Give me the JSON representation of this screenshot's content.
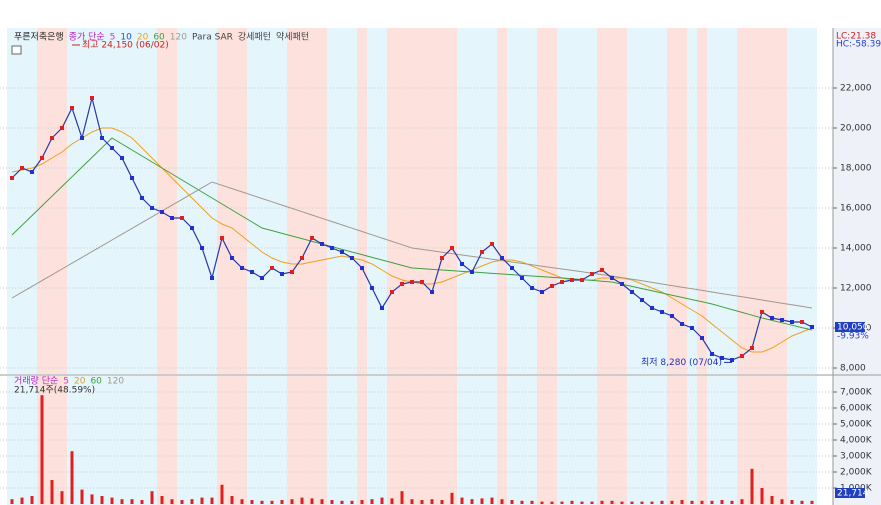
{
  "header": {
    "price_label": "종가 단순",
    "sar_label": "Para SAR",
    "sar_strong": "강세패턴",
    "sar_weak": "약세패턴",
    "volume_label": "거래량 단순",
    "volume_info": "21,714주(48.59%)",
    "lc": "LC:21.38",
    "hc": "HC:-58.39",
    "change": "-9.93%",
    "volume_last": "21,714"
  },
  "chart_data": [
    {
      "type": "line",
      "title": "푸른저축은행",
      "ylim": [
        7800,
        24900
      ],
      "yticks": [
        {
          "value": 8000,
          "label": "8,000"
        },
        {
          "value": 10000,
          "label": "10,000"
        },
        {
          "value": 12000,
          "label": "12,000"
        },
        {
          "value": 14000,
          "label": "14,000"
        },
        {
          "value": 16000,
          "label": "16,000"
        },
        {
          "value": 18000,
          "label": "18,000"
        },
        {
          "value": 20000,
          "label": "20,000"
        },
        {
          "value": 22000,
          "label": "22,000"
        }
      ],
      "grid": true,
      "last_price": {
        "value": 10050,
        "label": "10,050"
      },
      "other_periods": [
        {
          "label": "5",
          "color": "#e030d0"
        },
        {
          "label": "10",
          "color": "#2050e0"
        }
      ],
      "price": {
        "color": "#2838a8",
        "values": [
          17500,
          18000,
          17800,
          18500,
          19500,
          20000,
          21000,
          19500,
          21500,
          19500,
          19000,
          18500,
          17500,
          16500,
          16000,
          15800,
          15500,
          15500,
          15000,
          14000,
          12500,
          14500,
          13500,
          13000,
          12800,
          12500,
          13000,
          12700,
          12800,
          13500,
          14500,
          14200,
          14000,
          13800,
          13500,
          13000,
          12000,
          11000,
          11800,
          12200,
          12300,
          12300,
          11800,
          13500,
          14000,
          13200,
          12800,
          13800,
          14200,
          13500,
          13000,
          12500,
          12000,
          11800,
          12100,
          12300,
          12400,
          12400,
          12700,
          12900,
          12500,
          12200,
          11800,
          11400,
          11000,
          10800,
          10600,
          10200,
          10000,
          9500,
          8700,
          8500,
          8400,
          8600,
          9000,
          10800,
          10500,
          10400,
          10300,
          10300,
          10050
        ]
      },
      "series": [
        {
          "name": "20",
          "color": "#f0a020",
          "values": [
            17800,
            17900,
            18000,
            18200,
            18500,
            18800,
            19200,
            19500,
            19800,
            20000,
            20000,
            19800,
            19500,
            19000,
            18500,
            18000,
            17500,
            17000,
            16500,
            16000,
            15500,
            15200,
            15000,
            14600,
            14200,
            13800,
            13500,
            13300,
            13200,
            13200,
            13300,
            13400,
            13500,
            13600,
            13500,
            13400,
            13200,
            12900,
            12600,
            12400,
            12300,
            12200,
            12200,
            12300,
            12500,
            12700,
            12900,
            13100,
            13300,
            13400,
            13400,
            13300,
            13100,
            12900,
            12700,
            12500,
            12400,
            12400,
            12400,
            12500,
            12500,
            12500,
            12400,
            12200,
            12000,
            11800,
            11500,
            11200,
            10900,
            10600,
            10200,
            9800,
            9400,
            9000,
            8800,
            8800,
            9000,
            9300,
            9600,
            9800,
            10000
          ]
        },
        {
          "name": "60",
          "color": "#40a040",
          "values": [
            14650,
            15135,
            15620,
            16105,
            16590,
            17075,
            17560,
            18045,
            18530,
            19015,
            19500,
            19200,
            18900,
            18600,
            18300,
            18000,
            17700,
            17400,
            17100,
            16800,
            16500,
            16200,
            15900,
            15600,
            15300,
            15000,
            14867,
            14733,
            14600,
            14467,
            14333,
            14200,
            14067,
            13933,
            13800,
            13667,
            13533,
            13400,
            13267,
            13133,
            13000,
            12967,
            12933,
            12900,
            12867,
            12833,
            12800,
            12767,
            12733,
            12700,
            12667,
            12633,
            12600,
            12567,
            12533,
            12500,
            12460,
            12420,
            12380,
            12340,
            12300,
            12190,
            12080,
            11970,
            11860,
            11750,
            11640,
            11530,
            11420,
            11310,
            11200,
            11060,
            10920,
            10780,
            10640,
            10500,
            10380,
            10260,
            10140,
            10020,
            9900
          ]
        },
        {
          "name": "120",
          "color": "#a09890",
          "values": [
            11500,
            11790,
            12080,
            12370,
            12660,
            12950,
            13240,
            13530,
            13820,
            14110,
            14400,
            14690,
            14980,
            15270,
            15560,
            15850,
            16140,
            16430,
            16720,
            17010,
            17300,
            17135,
            16970,
            16805,
            16640,
            16475,
            16310,
            16145,
            15980,
            15815,
            15650,
            15485,
            15320,
            15155,
            14990,
            14825,
            14660,
            14495,
            14330,
            14165,
            14000,
            13930,
            13860,
            13790,
            13720,
            13650,
            13580,
            13510,
            13440,
            13370,
            13300,
            13230,
            13160,
            13090,
            13020,
            12950,
            12880,
            12810,
            12740,
            12670,
            12600,
            12520,
            12440,
            12360,
            12280,
            12200,
            12120,
            12040,
            11960,
            11880,
            11800,
            11720,
            11640,
            11560,
            11480,
            11400,
            11320,
            11240,
            11160,
            11080,
            11000
          ]
        }
      ],
      "band_colors": [
        "#e4f5fc",
        "#e4f5fc",
        "#e4f5fc",
        "#fde1dc",
        "#fde1dc",
        "#fde1dc",
        "#e4f5fc",
        "#e4f5fc",
        "#e4f5fc",
        "#e4f5fc",
        "#e4f5fc",
        "#e4f5fc",
        "#e4f5fc",
        "#e4f5fc",
        "#e4f5fc",
        "#fde1dc",
        "#fde1dc",
        "#e4f5fc",
        "#e4f5fc",
        "#e4f5fc",
        "#e4f5fc",
        "#fde1dc",
        "#fde1dc",
        "#fde1dc",
        "#e4f5fc",
        "#e4f5fc",
        "#e4f5fc",
        "#e4f5fc",
        "#fde1dc",
        "#fde1dc",
        "#fde1dc",
        "#fde1dc",
        "#e4f5fc",
        "#e4f5fc",
        "#e4f5fc",
        "#fde1dc",
        "#e4f5fc",
        "#e4f5fc",
        "#fde1dc",
        "#fde1dc",
        "#fde1dc",
        "#fde1dc",
        "#fde1dc",
        "#fde1dc",
        "#fde1dc",
        "#e4f5fc",
        "#e4f5fc",
        "#e4f5fc",
        "#e4f5fc",
        "#fde1dc",
        "#e4f5fc",
        "#e4f5fc",
        "#e4f5fc",
        "#fde1dc",
        "#fde1dc",
        "#e4f5fc",
        "#e4f5fc",
        "#e4f5fc",
        "#e4f5fc",
        "#fde1dc",
        "#fde1dc",
        "#fde1dc",
        "#e4f5fc",
        "#e4f5fc",
        "#e4f5fc",
        "#e4f5fc",
        "#fde1dc",
        "#fde1dc",
        "#e4f5fc",
        "#fde1dc",
        "#e4f5fc",
        "#e4f5fc",
        "#e4f5fc",
        "#fde1dc",
        "#fde1dc",
        "#fde1dc",
        "#fde1dc",
        "#fde1dc",
        "#e4f5fc",
        "#e4f5fc",
        "#e4f5fc"
      ],
      "annotations": [
        {
          "text": "최고 24,150 (06/02)",
          "value": 24150,
          "index": 6,
          "color": "#d02020"
        },
        {
          "text": "최저 8,280 (07/04)",
          "value": 8280,
          "index": 72,
          "color": "#2030c0"
        }
      ]
    },
    {
      "type": "bar",
      "title": "거래량",
      "ylim": [
        0,
        7875
      ],
      "yticks": [
        {
          "value": 1000,
          "label": "1,000K"
        },
        {
          "value": 2000,
          "label": "2,000K"
        },
        {
          "value": 3000,
          "label": "3,000K"
        },
        {
          "value": 4000,
          "label": "4,000K"
        },
        {
          "value": 5000,
          "label": "5,000K"
        },
        {
          "value": 6000,
          "label": "6,000K"
        },
        {
          "value": 7000,
          "label": "7,000K"
        }
      ],
      "grid": true,
      "color": "#e02020",
      "values": [
        300,
        400,
        500,
        6800,
        1500,
        800,
        3300,
        900,
        600,
        500,
        400,
        300,
        300,
        250,
        800,
        500,
        300,
        250,
        300,
        400,
        400,
        1200,
        500,
        300,
        250,
        200,
        200,
        250,
        300,
        400,
        350,
        300,
        250,
        200,
        200,
        250,
        300,
        400,
        350,
        800,
        300,
        250,
        300,
        250,
        700,
        400,
        300,
        350,
        400,
        300,
        250,
        200,
        200,
        150,
        150,
        150,
        200,
        150,
        150,
        200,
        200,
        150,
        150,
        150,
        150,
        200,
        200,
        250,
        200,
        200,
        200,
        250,
        200,
        300,
        2200,
        1000,
        500,
        300,
        250,
        200,
        200
      ],
      "legend": [
        {
          "label": "5",
          "color": "#e030d0"
        },
        {
          "label": "20",
          "color": "#e0a020"
        },
        {
          "label": "60",
          "color": "#40a040"
        },
        {
          "label": "120",
          "color": "#a09890"
        }
      ]
    }
  ]
}
